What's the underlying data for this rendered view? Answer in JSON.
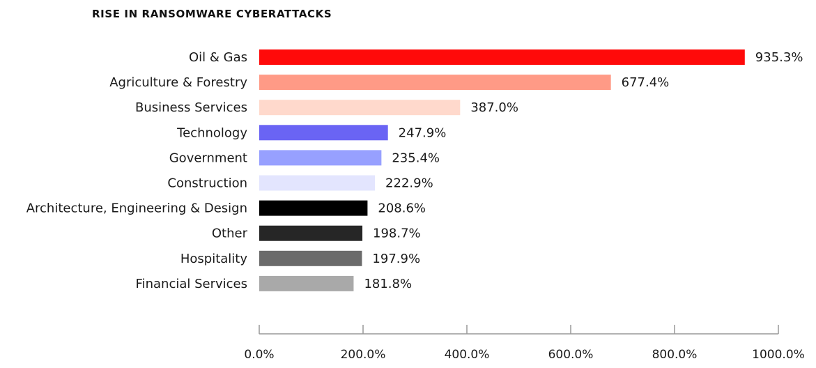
{
  "chart_data": {
    "type": "bar",
    "orientation": "horizontal",
    "title": "RISE IN RANSOMWARE CYBERATTACKS",
    "xlabel": "",
    "ylabel": "",
    "xlim": [
      0,
      1000
    ],
    "ticks": [
      0,
      200,
      400,
      600,
      800,
      1000
    ],
    "tick_labels": [
      "0.0%",
      "200.0%",
      "400.0%",
      "600.0%",
      "800.0%",
      "1000.0%"
    ],
    "grid": false,
    "legend": "none",
    "categories": [
      "Oil & Gas",
      "Agriculture & Forestry",
      "Business Services",
      "Technology",
      "Government",
      "Construction",
      "Architecture, Engineering & Design",
      "Other",
      "Hospitality",
      "Financial Services"
    ],
    "values": [
      935.3,
      677.4,
      387.0,
      247.9,
      235.4,
      222.9,
      208.6,
      198.7,
      197.9,
      181.8
    ],
    "value_labels": [
      "935.3%",
      "677.4%",
      "387.0%",
      "247.9%",
      "235.4%",
      "222.9%",
      "208.6%",
      "198.7%",
      "197.9%",
      "181.8%"
    ],
    "colors": [
      "#ff0a0a",
      "#ff9a86",
      "#ffd9cc",
      "#6a64f4",
      "#97a0ff",
      "#e3e5fe",
      "#000000",
      "#262626",
      "#6b6b6b",
      "#a9a9a9"
    ],
    "axis_color": "#999999"
  }
}
